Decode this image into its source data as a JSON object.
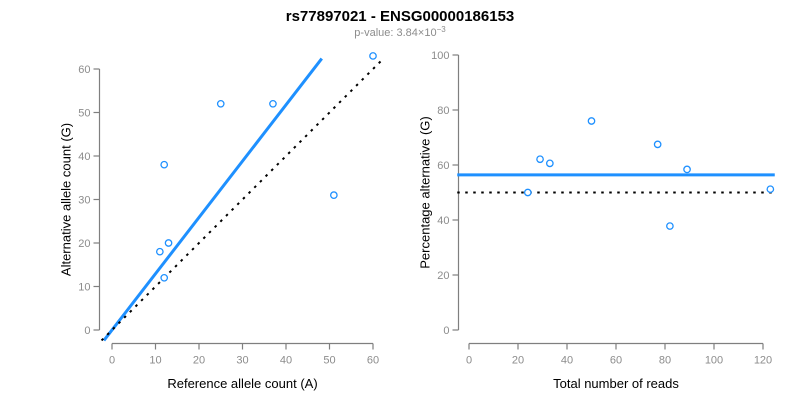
{
  "header": {
    "title": "rs77897021 - ENSG00000186153",
    "pvalue_text": "p-value: 3.84×10",
    "pvalue_exponent": "−3"
  },
  "colors": {
    "accent_blue": "#1E90FF",
    "axis_line_gray": "#7f7f7f",
    "tick_label_gray": "#8c8c8c",
    "text_black": "#000000",
    "dotted_line_black": "#000000",
    "background": "#ffffff"
  },
  "chart_data": [
    {
      "type": "scatter",
      "title": "",
      "xlabel": "Reference allele count (A)",
      "ylabel": "Alternative allele count (G)",
      "xlim": [
        0,
        60
      ],
      "ylim": [
        0,
        60
      ],
      "xticks": [
        0,
        10,
        20,
        30,
        40,
        50,
        60
      ],
      "yticks": [
        0,
        10,
        20,
        30,
        40,
        50,
        60
      ],
      "grid": false,
      "legend": "none",
      "point_style": "open-circle",
      "point_color": "#1E90FF",
      "points": [
        [
          11,
          18
        ],
        [
          12,
          12
        ],
        [
          12,
          38
        ],
        [
          13,
          20
        ],
        [
          25,
          52
        ],
        [
          37,
          52
        ],
        [
          51,
          31
        ],
        [
          60,
          63
        ]
      ],
      "lines": [
        {
          "name": "fit-line",
          "slope": 1.294,
          "intercept": 0,
          "style": "solid",
          "color": "#1E90FF",
          "width": 3
        },
        {
          "name": "identity-line",
          "slope": 1,
          "intercept": 0,
          "style": "dotted",
          "color": "#000000",
          "width": 2
        }
      ]
    },
    {
      "type": "scatter",
      "title": "",
      "xlabel": "Total number of reads",
      "ylabel": "Percentage alternative (G)",
      "xlim": [
        0,
        120
      ],
      "ylim": [
        0,
        100
      ],
      "xticks": [
        0,
        20,
        40,
        60,
        80,
        100,
        120
      ],
      "yticks": [
        0,
        20,
        40,
        60,
        80,
        100
      ],
      "grid": false,
      "legend": "none",
      "point_style": "open-circle",
      "point_color": "#1E90FF",
      "points": [
        [
          24,
          50
        ],
        [
          29,
          62.1
        ],
        [
          33,
          60.6
        ],
        [
          50,
          76
        ],
        [
          77,
          67.5
        ],
        [
          82,
          37.8
        ],
        [
          89,
          58.4
        ],
        [
          123,
          51.2
        ]
      ],
      "lines": [
        {
          "name": "mean-line",
          "h": 56.4,
          "style": "solid",
          "color": "#1E90FF",
          "width": 3
        },
        {
          "name": "expected-line",
          "h": 50,
          "style": "dotted",
          "color": "#000000",
          "width": 2
        }
      ]
    }
  ]
}
